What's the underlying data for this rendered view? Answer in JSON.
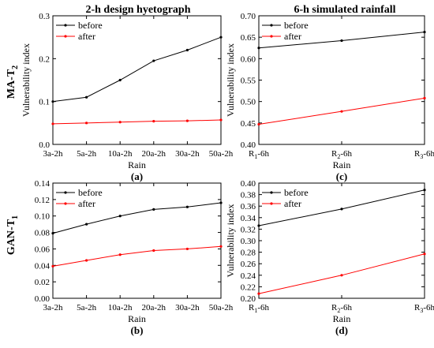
{
  "figure": {
    "col_titles": [
      "2-h design hyetograph",
      "6-h simulated rainfall"
    ],
    "row_labels": [
      {
        "main": "MA-T",
        "sub": "2"
      },
      {
        "main": "GAN-T",
        "sub": "1"
      }
    ]
  },
  "colors": {
    "before": "#000000",
    "after": "#ff0000"
  },
  "chart_data": [
    {
      "type": "line",
      "panel_label": "(a)",
      "categories": [
        "3a-2h",
        "5a-2h",
        "10a-2h",
        "20a-2h",
        "30a-2h",
        "50a-2h"
      ],
      "series": [
        {
          "name": "before",
          "values": [
            0.1,
            0.11,
            0.15,
            0.195,
            0.22,
            0.25
          ]
        },
        {
          "name": "after",
          "values": [
            0.048,
            0.05,
            0.052,
            0.054,
            0.055,
            0.057
          ]
        }
      ],
      "xlabel": "Rain",
      "ylabel": "Vulnerability index",
      "ylim": [
        0,
        0.3
      ],
      "yticks": [
        "0.0",
        "0.1",
        "0.2",
        "0.3"
      ],
      "legend": "top-left"
    },
    {
      "type": "line",
      "panel_label": "(b)",
      "categories": [
        "3a-2h",
        "5a-2h",
        "10a-2h",
        "20a-2h",
        "30a-2h",
        "50a-2h"
      ],
      "series": [
        {
          "name": "before",
          "values": [
            0.079,
            0.09,
            0.1,
            0.108,
            0.111,
            0.116
          ]
        },
        {
          "name": "after",
          "values": [
            0.039,
            0.046,
            0.053,
            0.058,
            0.06,
            0.063
          ]
        }
      ],
      "xlabel": "Rain",
      "ylabel": "",
      "ylim": [
        0,
        0.14
      ],
      "yticks": [
        "0.00",
        "0.02",
        "0.04",
        "0.06",
        "0.08",
        "0.10",
        "0.12",
        "0.14"
      ],
      "legend": "top-left"
    },
    {
      "type": "line",
      "panel_label": "(c)",
      "categories": [
        {
          "main": "R",
          "sub": "1",
          "rest": "-6h"
        },
        {
          "main": "R",
          "sub": "2",
          "rest": "-6h"
        },
        {
          "main": "R",
          "sub": "3",
          "rest": "-6h"
        }
      ],
      "series": [
        {
          "name": "before",
          "values": [
            0.625,
            0.642,
            0.662
          ]
        },
        {
          "name": "after",
          "values": [
            0.447,
            0.477,
            0.508
          ]
        }
      ],
      "xlabel": "Rain",
      "ylabel": "Vulnerability index",
      "ylim": [
        0.4,
        0.7
      ],
      "yticks": [
        "0.40",
        "0.45",
        "0.50",
        "0.55",
        "0.60",
        "0.65",
        "0.70"
      ],
      "legend": "top-left"
    },
    {
      "type": "line",
      "panel_label": "(d)",
      "categories": [
        {
          "main": "R",
          "sub": "1",
          "rest": "-6h"
        },
        {
          "main": "R",
          "sub": "2",
          "rest": "-6h"
        },
        {
          "main": "R",
          "sub": "3",
          "rest": "-6h"
        }
      ],
      "series": [
        {
          "name": "before",
          "values": [
            0.326,
            0.355,
            0.388
          ]
        },
        {
          "name": "after",
          "values": [
            0.208,
            0.24,
            0.277
          ]
        }
      ],
      "xlabel": "Rain",
      "ylabel": "Vulnerability index",
      "ylim": [
        0.2,
        0.4
      ],
      "yticks": [
        "0.20",
        "0.22",
        "0.24",
        "0.26",
        "0.28",
        "0.30",
        "0.32",
        "0.34",
        "0.36",
        "0.38",
        "0.40"
      ],
      "legend": "top-left"
    }
  ]
}
